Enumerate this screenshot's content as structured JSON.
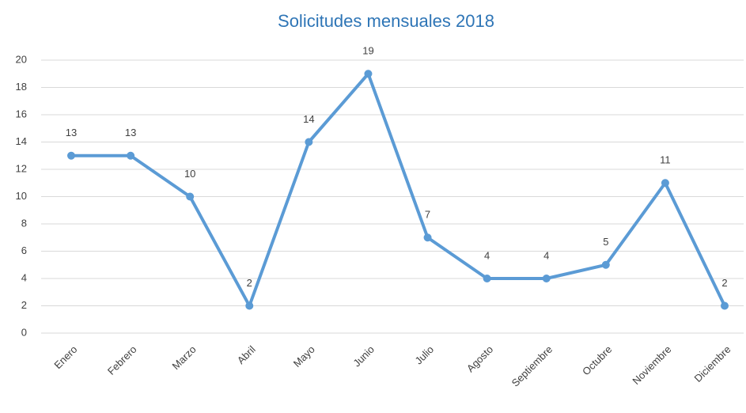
{
  "chart_data": {
    "type": "line",
    "title": "Solicitudes mensuales 2018",
    "categories": [
      "Enero",
      "Febrero",
      "Marzo",
      "Abril",
      "Mayo",
      "Junio",
      "Julio",
      "Agosto",
      "Septiembre",
      "Octubre",
      "Noviembre",
      "Diciembre"
    ],
    "values": [
      13,
      13,
      10,
      2,
      14,
      19,
      7,
      4,
      4,
      5,
      11,
      2
    ],
    "color": "#5b9bd5",
    "ylim": [
      0,
      20
    ],
    "yticks": [
      0,
      2,
      4,
      6,
      8,
      10,
      12,
      14,
      16,
      18,
      20
    ],
    "grid": true
  }
}
